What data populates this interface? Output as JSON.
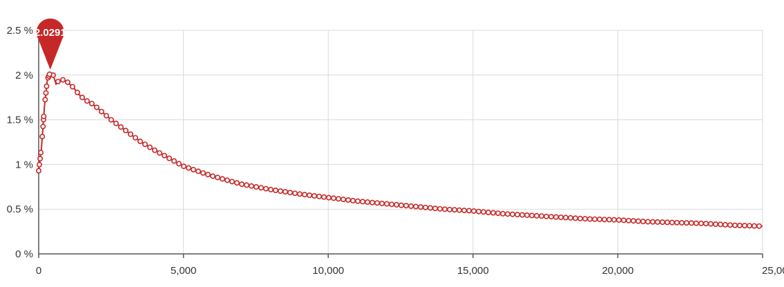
{
  "chart_data": {
    "type": "line",
    "title": "",
    "xlabel": "",
    "ylabel": "",
    "xlim": [
      0,
      25000
    ],
    "ylim": [
      0,
      2.5
    ],
    "grid": true,
    "legend": "none",
    "x_ticks": [
      {
        "value": 0,
        "label": "0"
      },
      {
        "value": 5000,
        "label": "5,000"
      },
      {
        "value": 10000,
        "label": "10,000"
      },
      {
        "value": 15000,
        "label": "15,000"
      },
      {
        "value": 20000,
        "label": "20,000"
      },
      {
        "value": 25000,
        "label": "25,000"
      }
    ],
    "y_ticks": [
      {
        "value": 0,
        "label": "0 %"
      },
      {
        "value": 0.5,
        "label": "0.5 %"
      },
      {
        "value": 1,
        "label": "1 %"
      },
      {
        "value": 1.5,
        "label": "1.5 %"
      },
      {
        "value": 2,
        "label": "2 %"
      },
      {
        "value": 2.5,
        "label": "2.5 %"
      }
    ],
    "series": [
      {
        "color": "#c62828",
        "marker": "hollow-circle",
        "x": [
          0,
          100,
          200,
          300,
          400,
          500,
          600,
          700,
          800,
          900,
          1000,
          1200,
          1400,
          1600,
          1800,
          2000,
          2500,
          3000,
          3500,
          4000,
          4500,
          5000,
          6000,
          7000,
          8000,
          9000,
          10000,
          11000,
          12000,
          13000,
          14000,
          15000,
          16000,
          17000,
          18000,
          19000,
          20000,
          21000,
          22000,
          23000,
          24000,
          25000
        ],
        "values": [
          0.93,
          1.2,
          1.65,
          1.95,
          2.0291,
          2.0,
          1.9,
          1.94,
          1.95,
          1.94,
          1.92,
          1.86,
          1.78,
          1.72,
          1.69,
          1.64,
          1.5,
          1.38,
          1.26,
          1.16,
          1.07,
          0.98,
          0.87,
          0.78,
          0.72,
          0.67,
          0.63,
          0.59,
          0.56,
          0.53,
          0.5,
          0.48,
          0.45,
          0.43,
          0.41,
          0.39,
          0.38,
          0.36,
          0.35,
          0.34,
          0.32,
          0.31
        ]
      }
    ],
    "annotations": [
      {
        "type": "max-pin",
        "x": 400,
        "y": 2.0291,
        "label": "2.0291"
      }
    ]
  }
}
